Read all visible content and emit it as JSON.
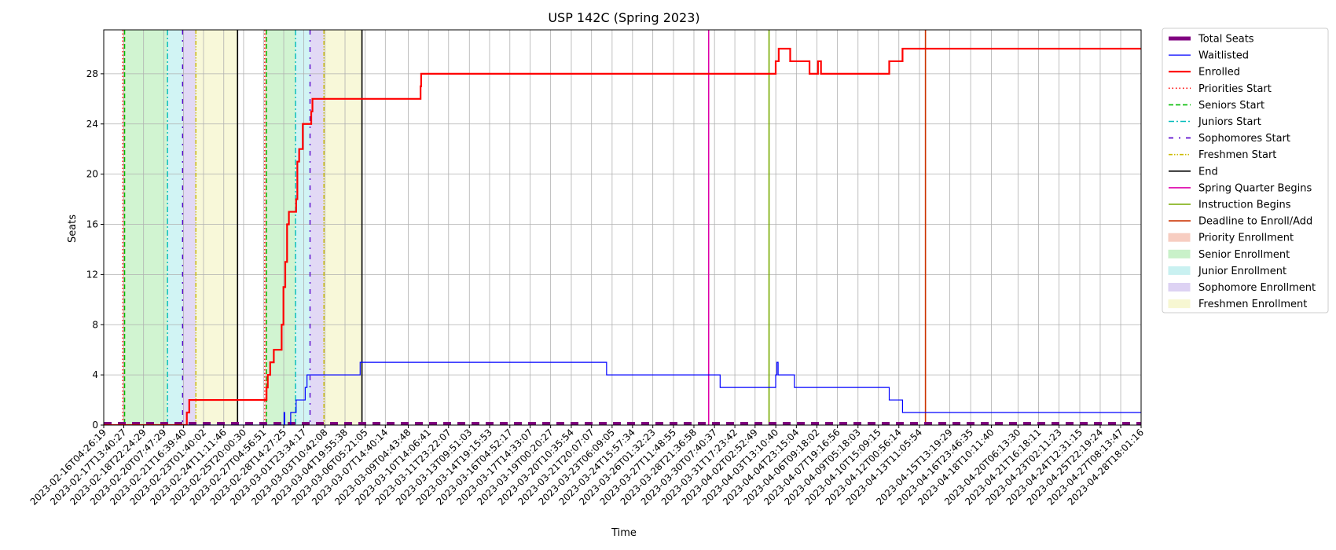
{
  "chart_data": {
    "type": "line",
    "title": "USP 142C (Spring 2023)",
    "xlabel": "Time",
    "ylabel": "Seats",
    "ylim": [
      0,
      31.5
    ],
    "xlim": [
      "2023-02-16T04:26:19",
      "2023-04-28T18:01:16"
    ],
    "y_ticks": [
      0,
      4,
      8,
      12,
      16,
      20,
      24,
      28
    ],
    "x_ticks": [
      "2023-02-16T04:26:19",
      "2023-02-17T13:40:27",
      "2023-02-18T22:24:29",
      "2023-02-20T07:47:29",
      "2023-02-21T16:39:40",
      "2023-02-23T01:40:02",
      "2023-02-24T11:11:46",
      "2023-02-25T20:00:30",
      "2023-02-27T04:56:51",
      "2023-02-28T14:27:25",
      "2023-03-01T23:34:17",
      "2023-03-03T10:42:08",
      "2023-03-04T19:55:38",
      "2023-03-06T05:21:05",
      "2023-03-07T14:40:14",
      "2023-03-09T04:43:48",
      "2023-03-10T14:06:41",
      "2023-03-11T23:22:07",
      "2023-03-13T09:51:03",
      "2023-03-14T19:15:53",
      "2023-03-16T04:52:17",
      "2023-03-17T14:33:07",
      "2023-03-19T00:20:27",
      "2023-03-20T10:35:54",
      "2023-03-21T20:07:07",
      "2023-03-23T06:09:05",
      "2023-03-24T15:57:34",
      "2023-03-26T01:32:23",
      "2023-03-27T11:48:55",
      "2023-03-28T21:36:58",
      "2023-03-30T07:40:37",
      "2023-03-31T17:23:42",
      "2023-04-02T02:52:49",
      "2023-04-03T13:10:40",
      "2023-04-04T23:15:04",
      "2023-04-06T09:18:02",
      "2023-04-07T19:16:56",
      "2023-04-09T05:18:03",
      "2023-04-10T15:09:15",
      "2023-04-12T00:56:14",
      "2023-04-13T11:05:54",
      "2023-04-15T13:19:29",
      "2023-04-16T23:46:35",
      "2023-04-18T10:11:40",
      "2023-04-20T06:13:30",
      "2023-04-21T16:18:11",
      "2023-04-23T02:11:23",
      "2023-04-24T12:31:15",
      "2023-04-25T22:19:24",
      "2023-04-27T08:13:47",
      "2023-04-28T18:01:16"
    ],
    "grid": true,
    "legend_position": "outside-right",
    "series": [
      {
        "name": "Total Seats",
        "color": "#800080",
        "style": "thick-dashed",
        "points": [
          [
            "2023-02-16T04:26:19",
            0
          ],
          [
            "2023-04-28T18:01:16",
            0
          ]
        ]
      },
      {
        "name": "Waitlisted",
        "color": "#0000ff",
        "style": "solid-thin",
        "points": [
          [
            "2023-02-16T04:26:19",
            0
          ],
          [
            "2023-02-28T13:00:00",
            0
          ],
          [
            "2023-02-28T15:00:00",
            1
          ],
          [
            "2023-02-28T16:00:00",
            0
          ],
          [
            "2023-03-01T01:00:00",
            0
          ],
          [
            "2023-03-01T02:00:00",
            1
          ],
          [
            "2023-03-01T10:00:00",
            1
          ],
          [
            "2023-03-01T11:00:00",
            2
          ],
          [
            "2023-03-02T01:00:00",
            2
          ],
          [
            "2023-03-02T02:00:00",
            3
          ],
          [
            "2023-03-02T05:00:00",
            4
          ],
          [
            "2023-03-05T20:00:00",
            4
          ],
          [
            "2023-03-05T21:00:00",
            5
          ],
          [
            "2023-03-22T20:00:00",
            5
          ],
          [
            "2023-03-22T21:00:00",
            4
          ],
          [
            "2023-03-30T16:00:00",
            4
          ],
          [
            "2023-03-30T17:00:00",
            3
          ],
          [
            "2023-04-03T12:00:00",
            3
          ],
          [
            "2023-04-03T13:00:00",
            4
          ],
          [
            "2023-04-03T15:00:00",
            5
          ],
          [
            "2023-04-03T17:00:00",
            4
          ],
          [
            "2023-04-04T19:00:00",
            4
          ],
          [
            "2023-04-04T20:00:00",
            3
          ],
          [
            "2023-04-11T08:00:00",
            3
          ],
          [
            "2023-04-11T09:00:00",
            2
          ],
          [
            "2023-04-12T06:00:00",
            2
          ],
          [
            "2023-04-12T07:00:00",
            1
          ],
          [
            "2023-04-28T18:01:16",
            1
          ]
        ]
      },
      {
        "name": "Enrolled",
        "color": "#ff0000",
        "style": "solid-thick",
        "points": [
          [
            "2023-02-16T04:26:19",
            0
          ],
          [
            "2023-02-21T16:30:00",
            0
          ],
          [
            "2023-02-21T22:00:00",
            1
          ],
          [
            "2023-02-22T02:00:00",
            2
          ],
          [
            "2023-02-27T08:00:00",
            2
          ],
          [
            "2023-02-27T10:00:00",
            3
          ],
          [
            "2023-02-27T12:00:00",
            4
          ],
          [
            "2023-02-27T16:00:00",
            5
          ],
          [
            "2023-02-27T22:00:00",
            6
          ],
          [
            "2023-02-28T09:00:00",
            6
          ],
          [
            "2023-02-28T11:00:00",
            8
          ],
          [
            "2023-02-28T14:00:00",
            11
          ],
          [
            "2023-02-28T17:00:00",
            13
          ],
          [
            "2023-02-28T20:00:00",
            16
          ],
          [
            "2023-02-28T23:00:00",
            17
          ],
          [
            "2023-03-01T10:00:00",
            17
          ],
          [
            "2023-03-01T11:00:00",
            18
          ],
          [
            "2023-03-01T13:00:00",
            21
          ],
          [
            "2023-03-01T16:00:00",
            22
          ],
          [
            "2023-03-01T22:00:00",
            24
          ],
          [
            "2023-03-02T11:00:00",
            24
          ],
          [
            "2023-03-02T12:00:00",
            25
          ],
          [
            "2023-03-02T14:00:00",
            26
          ],
          [
            "2023-03-10T00:00:00",
            26
          ],
          [
            "2023-03-10T01:00:00",
            27
          ],
          [
            "2023-03-10T02:00:00",
            28
          ],
          [
            "2023-04-03T12:00:00",
            28
          ],
          [
            "2023-04-03T13:00:00",
            29
          ],
          [
            "2023-04-03T18:00:00",
            30
          ],
          [
            "2023-04-04T12:00:00",
            30
          ],
          [
            "2023-04-04T13:00:00",
            29
          ],
          [
            "2023-04-05T20:00:00",
            29
          ],
          [
            "2023-04-05T21:00:00",
            28
          ],
          [
            "2023-04-06T10:00:00",
            28
          ],
          [
            "2023-04-06T11:00:00",
            29
          ],
          [
            "2023-04-06T15:00:00",
            29
          ],
          [
            "2023-04-06T16:00:00",
            28
          ],
          [
            "2023-04-11T08:00:00",
            28
          ],
          [
            "2023-04-11T09:00:00",
            29
          ],
          [
            "2023-04-12T06:00:00",
            29
          ],
          [
            "2023-04-12T07:00:00",
            30
          ],
          [
            "2023-04-28T18:01:16",
            30
          ]
        ]
      }
    ],
    "vertical_markers": [
      {
        "name": "Priorities Start",
        "color": "#ff0000",
        "style": "dotted",
        "times": [
          "2023-02-17T12:00:00",
          "2023-02-27T07:00:00"
        ]
      },
      {
        "name": "Seniors Start",
        "color": "#00bb00",
        "style": "dashed",
        "times": [
          "2023-02-17T15:00:00",
          "2023-02-27T10:00:00"
        ]
      },
      {
        "name": "Juniors Start",
        "color": "#00bbbb",
        "style": "dashdot",
        "times": [
          "2023-02-20T14:00:00",
          "2023-03-01T10:00:00"
        ]
      },
      {
        "name": "Sophomores Start",
        "color": "#5500cc",
        "style": "loose-dashdot",
        "times": [
          "2023-02-21T15:00:00",
          "2023-03-02T10:00:00"
        ]
      },
      {
        "name": "Freshmen Start",
        "color": "#ccbb00",
        "style": "dashdotdot",
        "times": [
          "2023-02-22T13:00:00",
          "2023-03-03T09:00:00"
        ]
      },
      {
        "name": "End",
        "color": "#000000",
        "style": "solid",
        "times": [
          "2023-02-25T10:00:00",
          "2023-03-06T00:00:00"
        ]
      },
      {
        "name": "Spring Quarter Begins",
        "color": "#dd00aa",
        "style": "solid",
        "times": [
          "2023-03-29T22:00:00"
        ]
      },
      {
        "name": "Instruction Begins",
        "color": "#77aa00",
        "style": "solid",
        "times": [
          "2023-04-03T02:00:00"
        ]
      },
      {
        "name": "Deadline to Enroll/Add",
        "color": "#cc3300",
        "style": "solid",
        "times": [
          "2023-04-13T21:00:00"
        ]
      }
    ],
    "shaded_periods": [
      {
        "name": "Priority Enrollment",
        "color": "#f4b8a8",
        "ranges": [
          [
            "2023-02-17T12:00:00",
            "2023-02-17T15:00:00"
          ],
          [
            "2023-02-27T07:00:00",
            "2023-02-27T10:00:00"
          ]
        ]
      },
      {
        "name": "Senior Enrollment",
        "color": "#b3ecb3",
        "ranges": [
          [
            "2023-02-17T15:00:00",
            "2023-02-20T14:00:00"
          ],
          [
            "2023-02-27T10:00:00",
            "2023-03-01T10:00:00"
          ]
        ]
      },
      {
        "name": "Junior Enrollment",
        "color": "#b3ecec",
        "ranges": [
          [
            "2023-02-20T14:00:00",
            "2023-02-21T15:00:00"
          ],
          [
            "2023-03-01T10:00:00",
            "2023-03-02T10:00:00"
          ]
        ]
      },
      {
        "name": "Sophomore Enrollment",
        "color": "#cfc0ef",
        "ranges": [
          [
            "2023-02-21T15:00:00",
            "2023-02-22T13:00:00"
          ],
          [
            "2023-03-02T10:00:00",
            "2023-03-03T09:00:00"
          ]
        ]
      },
      {
        "name": "Freshmen Enrollment",
        "color": "#f4f4c0",
        "ranges": [
          [
            "2023-02-22T13:00:00",
            "2023-02-25T10:00:00"
          ],
          [
            "2023-03-03T09:00:00",
            "2023-03-06T00:00:00"
          ]
        ]
      }
    ],
    "legend": [
      "Total Seats",
      "Waitlisted",
      "Enrolled",
      "Priorities Start",
      "Seniors Start",
      "Juniors Start",
      "Sophomores Start",
      "Freshmen Start",
      "End",
      "Spring Quarter Begins",
      "Instruction Begins",
      "Deadline to Enroll/Add",
      "Priority Enrollment",
      "Senior Enrollment",
      "Junior Enrollment",
      "Sophomore Enrollment",
      "Freshmen Enrollment"
    ]
  }
}
